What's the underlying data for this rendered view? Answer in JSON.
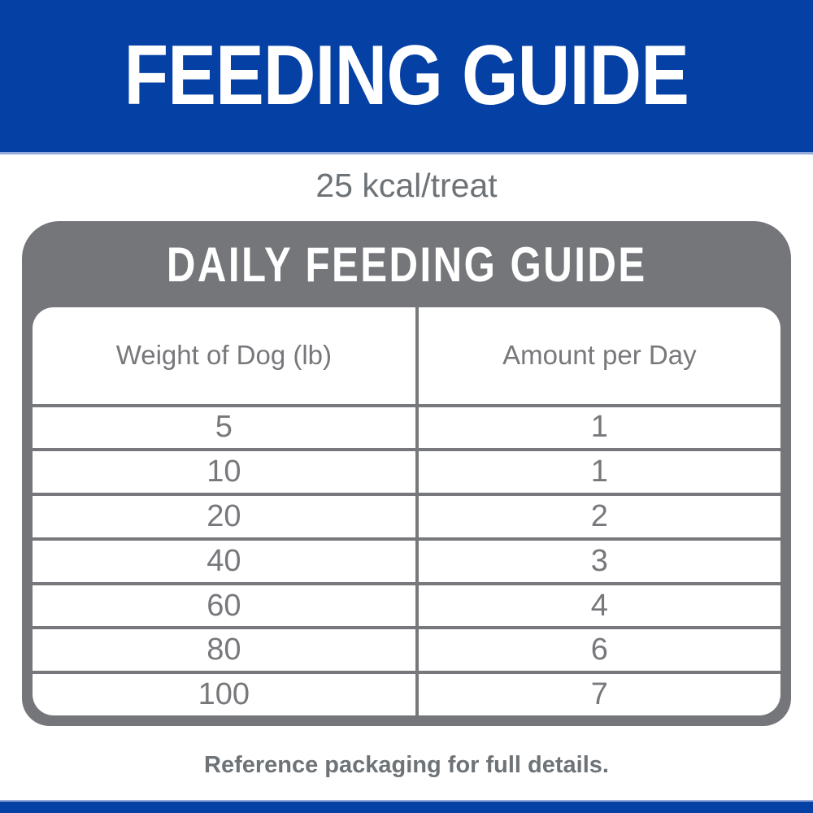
{
  "banner": {
    "title": "FEEDING GUIDE"
  },
  "subtitle": "25 kcal/treat",
  "card": {
    "title": "DAILY FEEDING GUIDE",
    "table": {
      "columns": {
        "weight": "Weight of Dog (lb)",
        "amount": "Amount per Day"
      },
      "rows": [
        {
          "weight": "5",
          "amount": "1"
        },
        {
          "weight": "10",
          "amount": "1"
        },
        {
          "weight": "20",
          "amount": "2"
        },
        {
          "weight": "40",
          "amount": "3"
        },
        {
          "weight": "60",
          "amount": "4"
        },
        {
          "weight": "80",
          "amount": "6"
        },
        {
          "weight": "100",
          "amount": "7"
        }
      ]
    }
  },
  "footer_note": "Reference packaging for full details.",
  "colors": {
    "brand_blue": "#0540A5",
    "edge_blue": "#93AADA",
    "panel_gray": "#75767A",
    "line_gray": "#77787B",
    "text_gray": "#6E7377"
  }
}
